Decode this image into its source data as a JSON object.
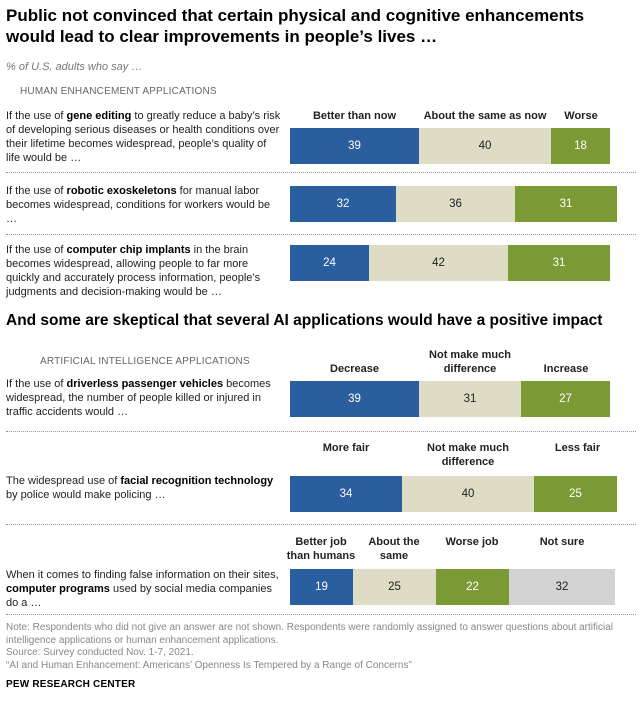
{
  "title": "Public not convinced that certain physical and cognitive enhancements would lead to clear improvements in people’s lives …",
  "subtitle": "% of U.S. adults who say …",
  "colors": {
    "blue": "#2a5e9e",
    "beige": "#dedcc4",
    "green": "#7b9a36",
    "gray": "#d3d3d3"
  },
  "chart_data": [
    {
      "type": "bar",
      "orientation": "horizontal-stacked",
      "section": "HUMAN ENHANCEMENT APPLICATIONS",
      "categories": [
        "Better than now",
        "About the same as now",
        "Worse"
      ],
      "rows": [
        {
          "pre": "If the use of ",
          "bold": "gene editing",
          "post": " to greatly reduce a baby’s risk of developing serious diseases or health conditions over their lifetime becomes widespread, people’s quality of life would be …",
          "values": [
            39,
            40,
            18
          ]
        },
        {
          "pre": "If the use of ",
          "bold": "robotic exoskeletons",
          "post": " for manual labor becomes widespread, conditions for workers would be …",
          "values": [
            32,
            36,
            31
          ]
        },
        {
          "pre": "If the use of ",
          "bold": "computer chip implants",
          "post": " in the brain becomes widespread, allowing people to far more quickly and accurately process information, people’s judgments and decision-making would be …",
          "values": [
            24,
            42,
            31
          ]
        }
      ]
    },
    {
      "type": "bar",
      "orientation": "horizontal-stacked",
      "title": "And some are skeptical that several AI applications would have a positive impact",
      "section": "ARTIFICIAL INTELLIGENCE APPLICATIONS",
      "rows": [
        {
          "pre": "If the use of ",
          "bold": "driverless passenger vehicles",
          "post": " becomes widespread, the number of people killed or injured in traffic accidents would …",
          "categories": [
            "Decrease",
            "Not make much difference",
            "Increase"
          ],
          "values": [
            39,
            31,
            27
          ]
        },
        {
          "pre": "The widespread use of ",
          "bold": "facial recognition technology",
          "post": " by police would make policing …",
          "categories": [
            "More fair",
            "Not make much difference",
            "Less fair"
          ],
          "values": [
            34,
            40,
            25
          ]
        },
        {
          "pre": "When it comes to finding false information on their sites, ",
          "bold": "computer programs",
          "post": " used by social media companies do a …",
          "categories": [
            "Better job than humans",
            "About the same",
            "Worse job",
            "Not sure"
          ],
          "values": [
            19,
            25,
            22,
            32
          ]
        }
      ]
    }
  ],
  "notes": {
    "note": "Note: Respondents who did not give an answer are not shown. Respondents were randomly assigned to answer questions about artificial intelligence applications or human enhancement applications.",
    "source": "Source: Survey conducted Nov. 1-7, 2021.",
    "report": "“AI and Human Enhancement: Americans’ Openness Is Tempered by a Range of Concerns”",
    "brand": "PEW RESEARCH CENTER"
  }
}
